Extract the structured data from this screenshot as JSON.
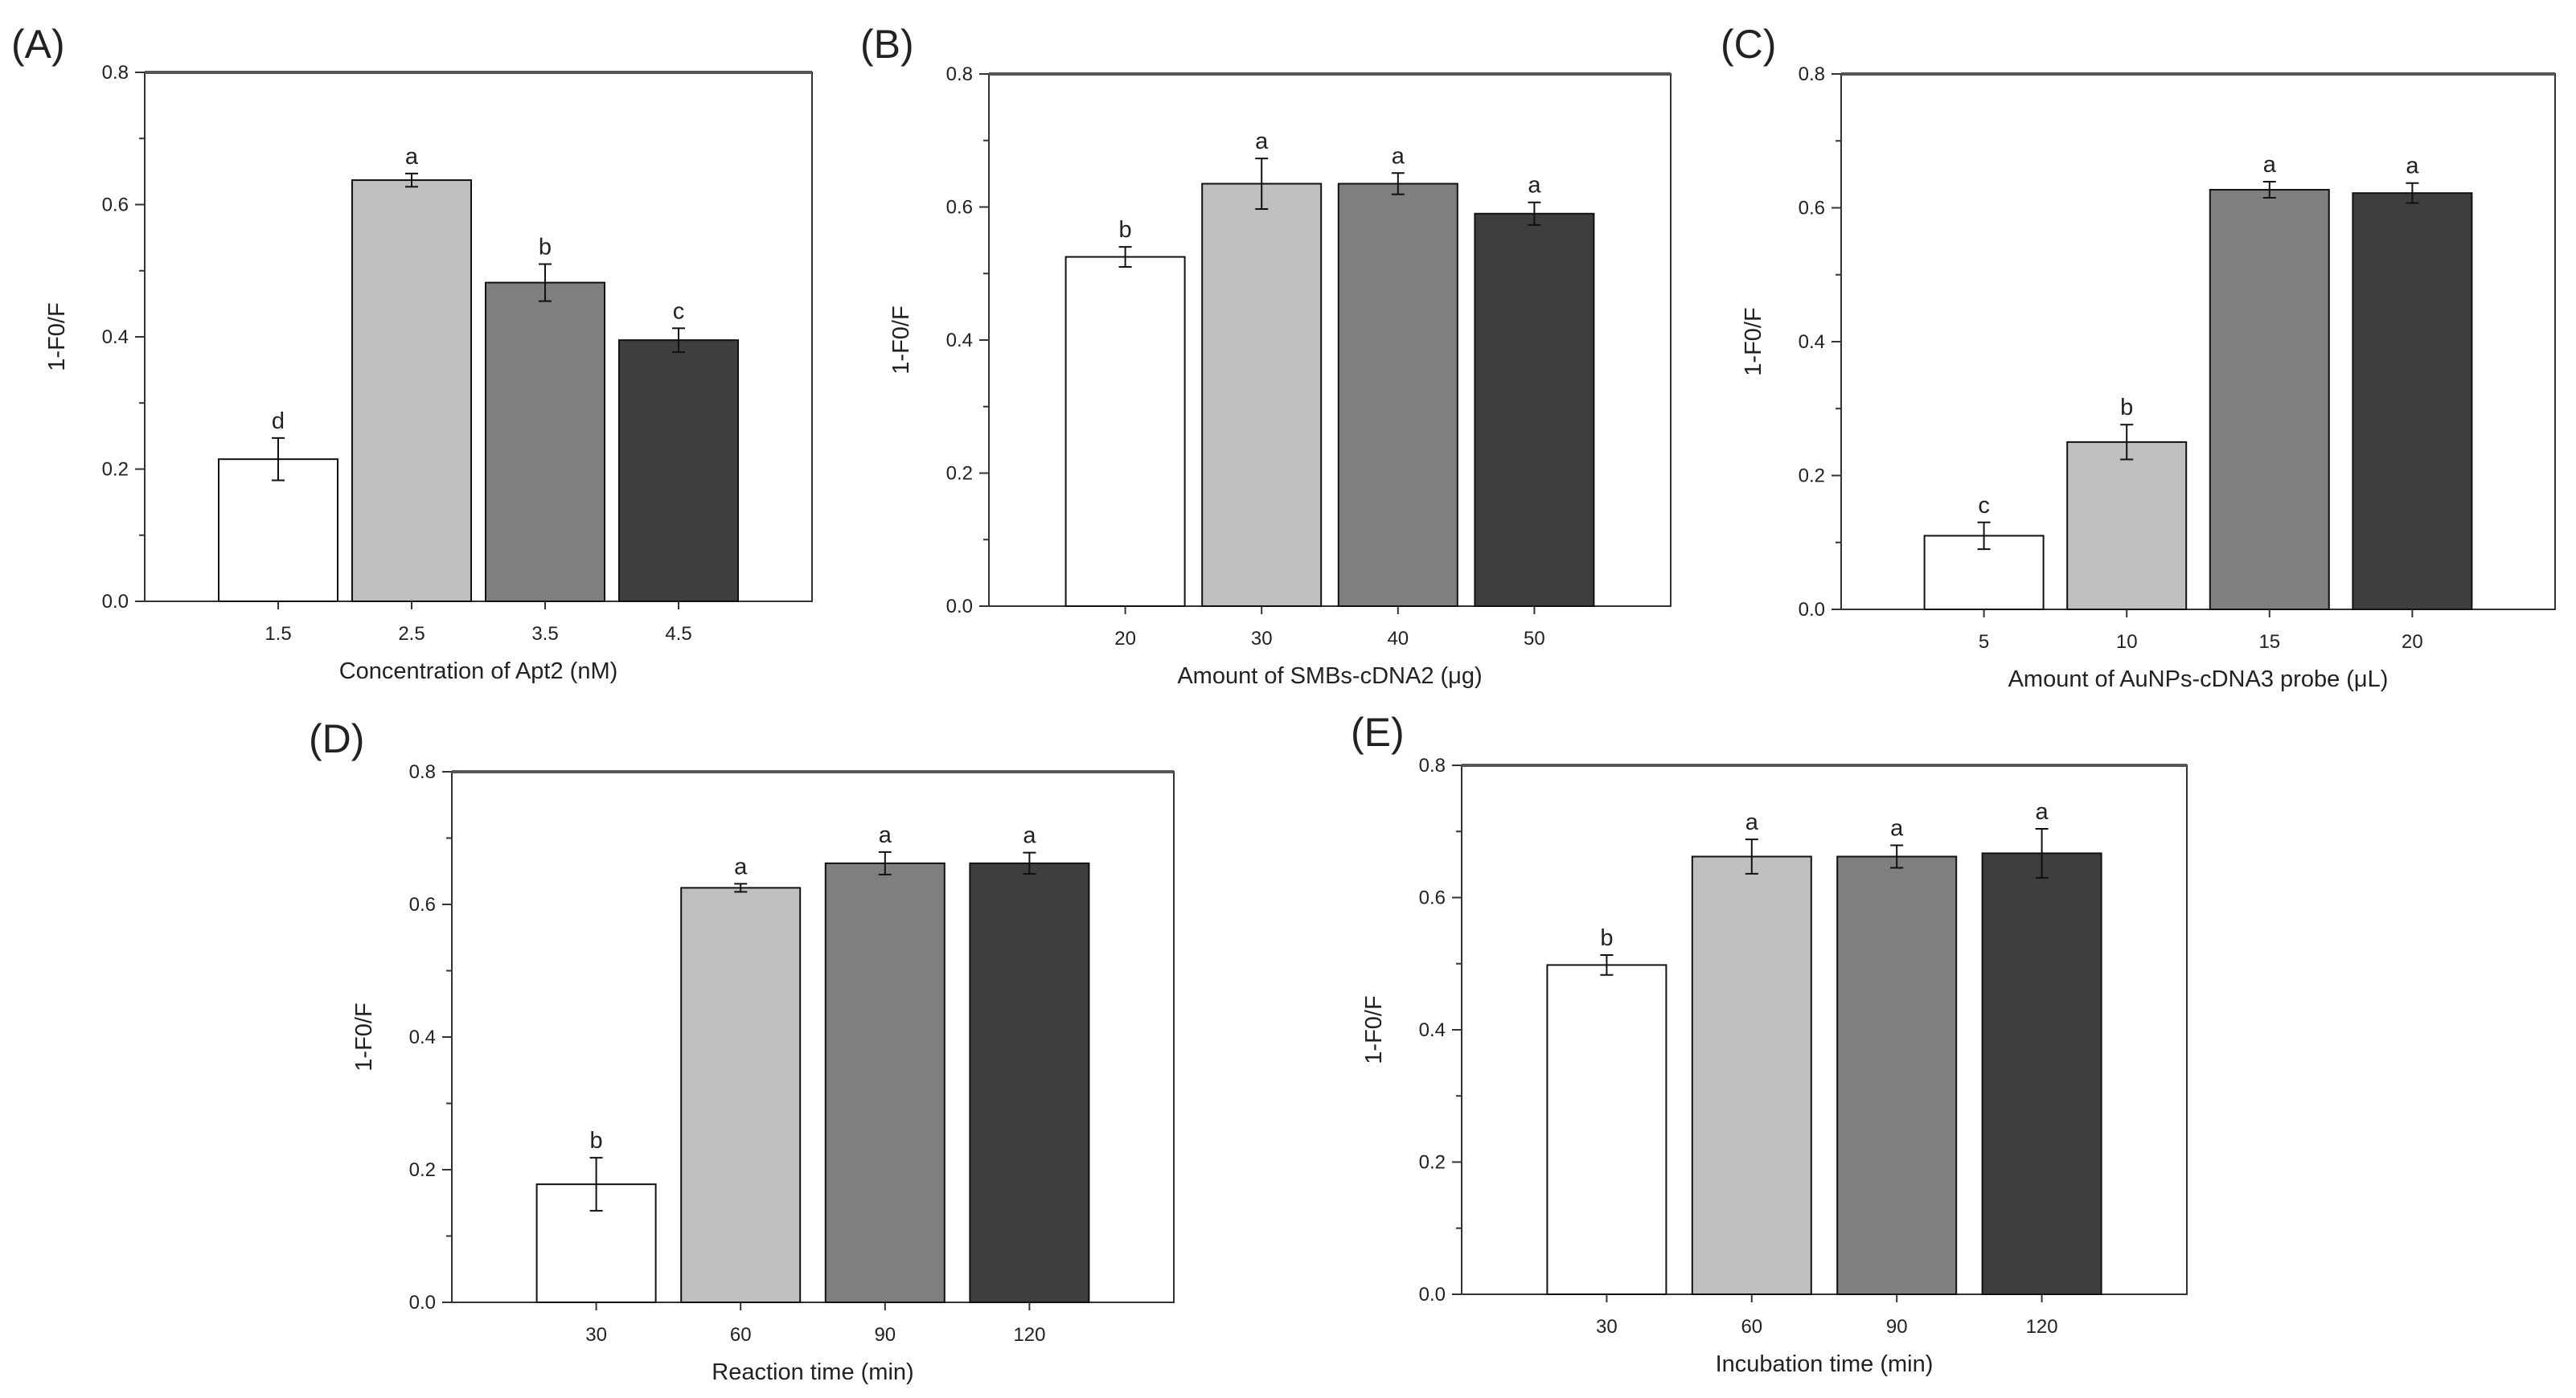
{
  "figure": {
    "colors": {
      "axis": "#333333",
      "bar_stroke": "#111111",
      "error": "#111111",
      "series_fills": [
        "#ffffff",
        "#bfbfbf",
        "#7f7f7f",
        "#3e3e3e"
      ]
    }
  },
  "chart_data": [
    {
      "panel_label": "(A)",
      "type": "bar",
      "categories": [
        "1.5",
        "2.5",
        "3.5",
        "4.5"
      ],
      "values": [
        0.215,
        0.637,
        0.482,
        0.395
      ],
      "errors": [
        0.032,
        0.01,
        0.028,
        0.018
      ],
      "letters": [
        "d",
        "a",
        "b",
        "c"
      ],
      "xlabel": "Concentration of Apt2 (nM)",
      "ylabel": "1-F0/F",
      "ylim": [
        0,
        0.8
      ],
      "yticks": [
        "0.0",
        "0.2",
        "0.4",
        "0.6",
        "0.8"
      ]
    },
    {
      "panel_label": "(B)",
      "type": "bar",
      "categories": [
        "20",
        "30",
        "40",
        "50"
      ],
      "values": [
        0.525,
        0.635,
        0.635,
        0.59
      ],
      "errors": [
        0.015,
        0.038,
        0.016,
        0.017
      ],
      "letters": [
        "b",
        "a",
        "a",
        "a"
      ],
      "xlabel": "Amount of SMBs-cDNA2 (μg)",
      "ylabel": "1-F0/F",
      "ylim": [
        0,
        0.8
      ],
      "yticks": [
        "0.0",
        "0.2",
        "0.4",
        "0.6",
        "0.8"
      ]
    },
    {
      "panel_label": "(C)",
      "type": "bar",
      "categories": [
        "5",
        "10",
        "15",
        "20"
      ],
      "values": [
        0.11,
        0.25,
        0.627,
        0.622
      ],
      "errors": [
        0.02,
        0.026,
        0.012,
        0.015
      ],
      "letters": [
        "c",
        "b",
        "a",
        "a"
      ],
      "xlabel": "Amount of AuNPs-cDNA3 probe (μL)",
      "ylabel": "1-F0/F",
      "ylim": [
        0,
        0.8
      ],
      "yticks": [
        "0.0",
        "0.2",
        "0.4",
        "0.6",
        "0.8"
      ]
    },
    {
      "panel_label": "(D)",
      "type": "bar",
      "categories": [
        "30",
        "60",
        "90",
        "120"
      ],
      "values": [
        0.178,
        0.625,
        0.662,
        0.662
      ],
      "errors": [
        0.04,
        0.006,
        0.017,
        0.016
      ],
      "letters": [
        "b",
        "a",
        "a",
        "a"
      ],
      "xlabel": "Reaction time (min)",
      "ylabel": "1-F0/F",
      "ylim": [
        0,
        0.8
      ],
      "yticks": [
        "0.0",
        "0.2",
        "0.4",
        "0.6",
        "0.8"
      ]
    },
    {
      "panel_label": "(E)",
      "type": "bar",
      "categories": [
        "30",
        "60",
        "90",
        "120"
      ],
      "values": [
        0.498,
        0.662,
        0.662,
        0.667
      ],
      "errors": [
        0.015,
        0.026,
        0.017,
        0.037
      ],
      "letters": [
        "b",
        "a",
        "a",
        "a"
      ],
      "xlabel": "Incubation time (min)",
      "ylabel": "1-F0/F",
      "ylim": [
        0,
        0.8
      ],
      "yticks": [
        "0.0",
        "0.2",
        "0.4",
        "0.6",
        "0.8"
      ]
    }
  ]
}
